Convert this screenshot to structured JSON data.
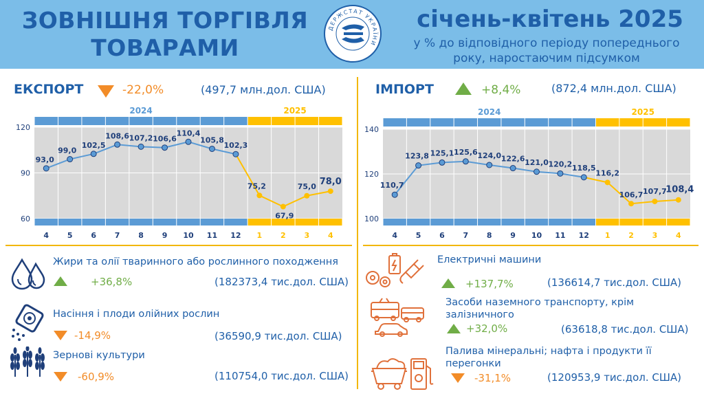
{
  "header": {
    "title_line1": "ЗОВНІШНЯ ТОРГІВЛЯ",
    "title_line2": "ТОВАРАМИ",
    "period": "січень-квітень 2025",
    "subtitle_line1": "у % до відповідного періоду попереднього",
    "subtitle_line2": "року, наростаючим підсумком",
    "logo_text": "ДЕРЖСТАТ УКРАЇНИ"
  },
  "colors": {
    "header_bg": "#7bbde8",
    "title_blue": "#1f5fa8",
    "bar_2024": "#5b9bd5",
    "bar_2025": "#ffc000",
    "line_2024": "#5b9bd5",
    "line_2025": "#ffc000",
    "marker_2024": "#5b9bd5",
    "plot_bg": "#d9d9d9",
    "down": "#f28c28",
    "up": "#70ad47",
    "divider": "#f2b705"
  },
  "export": {
    "title": "ЕКСПОРТ",
    "change": "-22,0%",
    "direction": "down",
    "volume": "(497,7 млн.дол. США)",
    "items": [
      {
        "label": "Жири та олії тваринного або рослинного походження",
        "change": "+36,8%",
        "direction": "up",
        "value": "(182373,4 тис.дол. США)",
        "icon": "oil-drops-icon"
      },
      {
        "label": "Насіння і плоди олійних рослин",
        "change": "-14,9%",
        "direction": "down",
        "value": "(36590,9 тис.дол. США)",
        "icon": "seeds-icon"
      },
      {
        "label": "Зернові культури",
        "change": "-60,9%",
        "direction": "down",
        "value": "(110754,0 тис.дол. США)",
        "icon": "wheat-icon"
      }
    ]
  },
  "import": {
    "title": "ІМПОРТ",
    "change": "+8,4%",
    "direction": "up",
    "volume": "(872,4 млн.дол. США)",
    "items": [
      {
        "label": "Електричні машини",
        "change": "+137,7%",
        "direction": "up",
        "value": "(136614,7 тис.дол. США)",
        "icon": "electric-machines-icon"
      },
      {
        "label_line1": "Засоби наземного транспорту, крім",
        "label_line2": "залізничного",
        "change": "+32,0%",
        "direction": "up",
        "value": "(63618,8 тис.дол. США)",
        "icon": "transport-icon"
      },
      {
        "label_line1": "Палива мінеральні; нафта і продукти її",
        "label_line2": "перегонки",
        "change": "-31,1%",
        "direction": "down",
        "value": "(120953,9 тис.дол. США)",
        "icon": "fuel-icon"
      }
    ]
  },
  "chart_data": [
    {
      "type": "line",
      "id": "export",
      "year_labels": [
        "2024",
        "2025"
      ],
      "categories": [
        "4",
        "5",
        "6",
        "7",
        "8",
        "9",
        "10",
        "11",
        "12",
        "1",
        "2",
        "3",
        "4"
      ],
      "series": [
        {
          "name": "2024",
          "values": [
            93.0,
            99.0,
            102.5,
            108.6,
            107.2,
            106.6,
            110.4,
            105.8,
            102.3,
            null,
            null,
            null,
            null
          ]
        },
        {
          "name": "2025",
          "values": [
            null,
            null,
            null,
            null,
            null,
            null,
            null,
            null,
            102.3,
            75.2,
            67.9,
            75.0,
            78.0
          ]
        }
      ],
      "point_labels": [
        "93,0",
        "99,0",
        "102,5",
        "108,6",
        "107,2",
        "106,6",
        "110,4",
        "105,8",
        "102,3",
        "75,2",
        "67,9",
        "75,0",
        "78,0"
      ],
      "yticks": [
        "60",
        "90",
        "120"
      ],
      "ylim": [
        60,
        120
      ],
      "grid": true
    },
    {
      "type": "line",
      "id": "import",
      "year_labels": [
        "2024",
        "2025"
      ],
      "categories": [
        "4",
        "5",
        "6",
        "7",
        "8",
        "9",
        "10",
        "11",
        "12",
        "1",
        "2",
        "3",
        "4"
      ],
      "series": [
        {
          "name": "2024",
          "values": [
            110.7,
            123.8,
            125.1,
            125.6,
            124.0,
            122.6,
            121.0,
            120.2,
            118.5,
            null,
            null,
            null,
            null
          ]
        },
        {
          "name": "2025",
          "values": [
            null,
            null,
            null,
            null,
            null,
            null,
            null,
            null,
            118.5,
            116.2,
            106.7,
            107.7,
            108.4
          ]
        }
      ],
      "point_labels": [
        "110,7",
        "123,8",
        "125,1",
        "125,6",
        "124,0",
        "122,6",
        "121,0",
        "120,2",
        "118,5",
        "116,2",
        "106,7",
        "107,7",
        "108,4"
      ],
      "yticks": [
        "100",
        "120",
        "140"
      ],
      "ylim": [
        100,
        140
      ],
      "grid": true
    }
  ]
}
